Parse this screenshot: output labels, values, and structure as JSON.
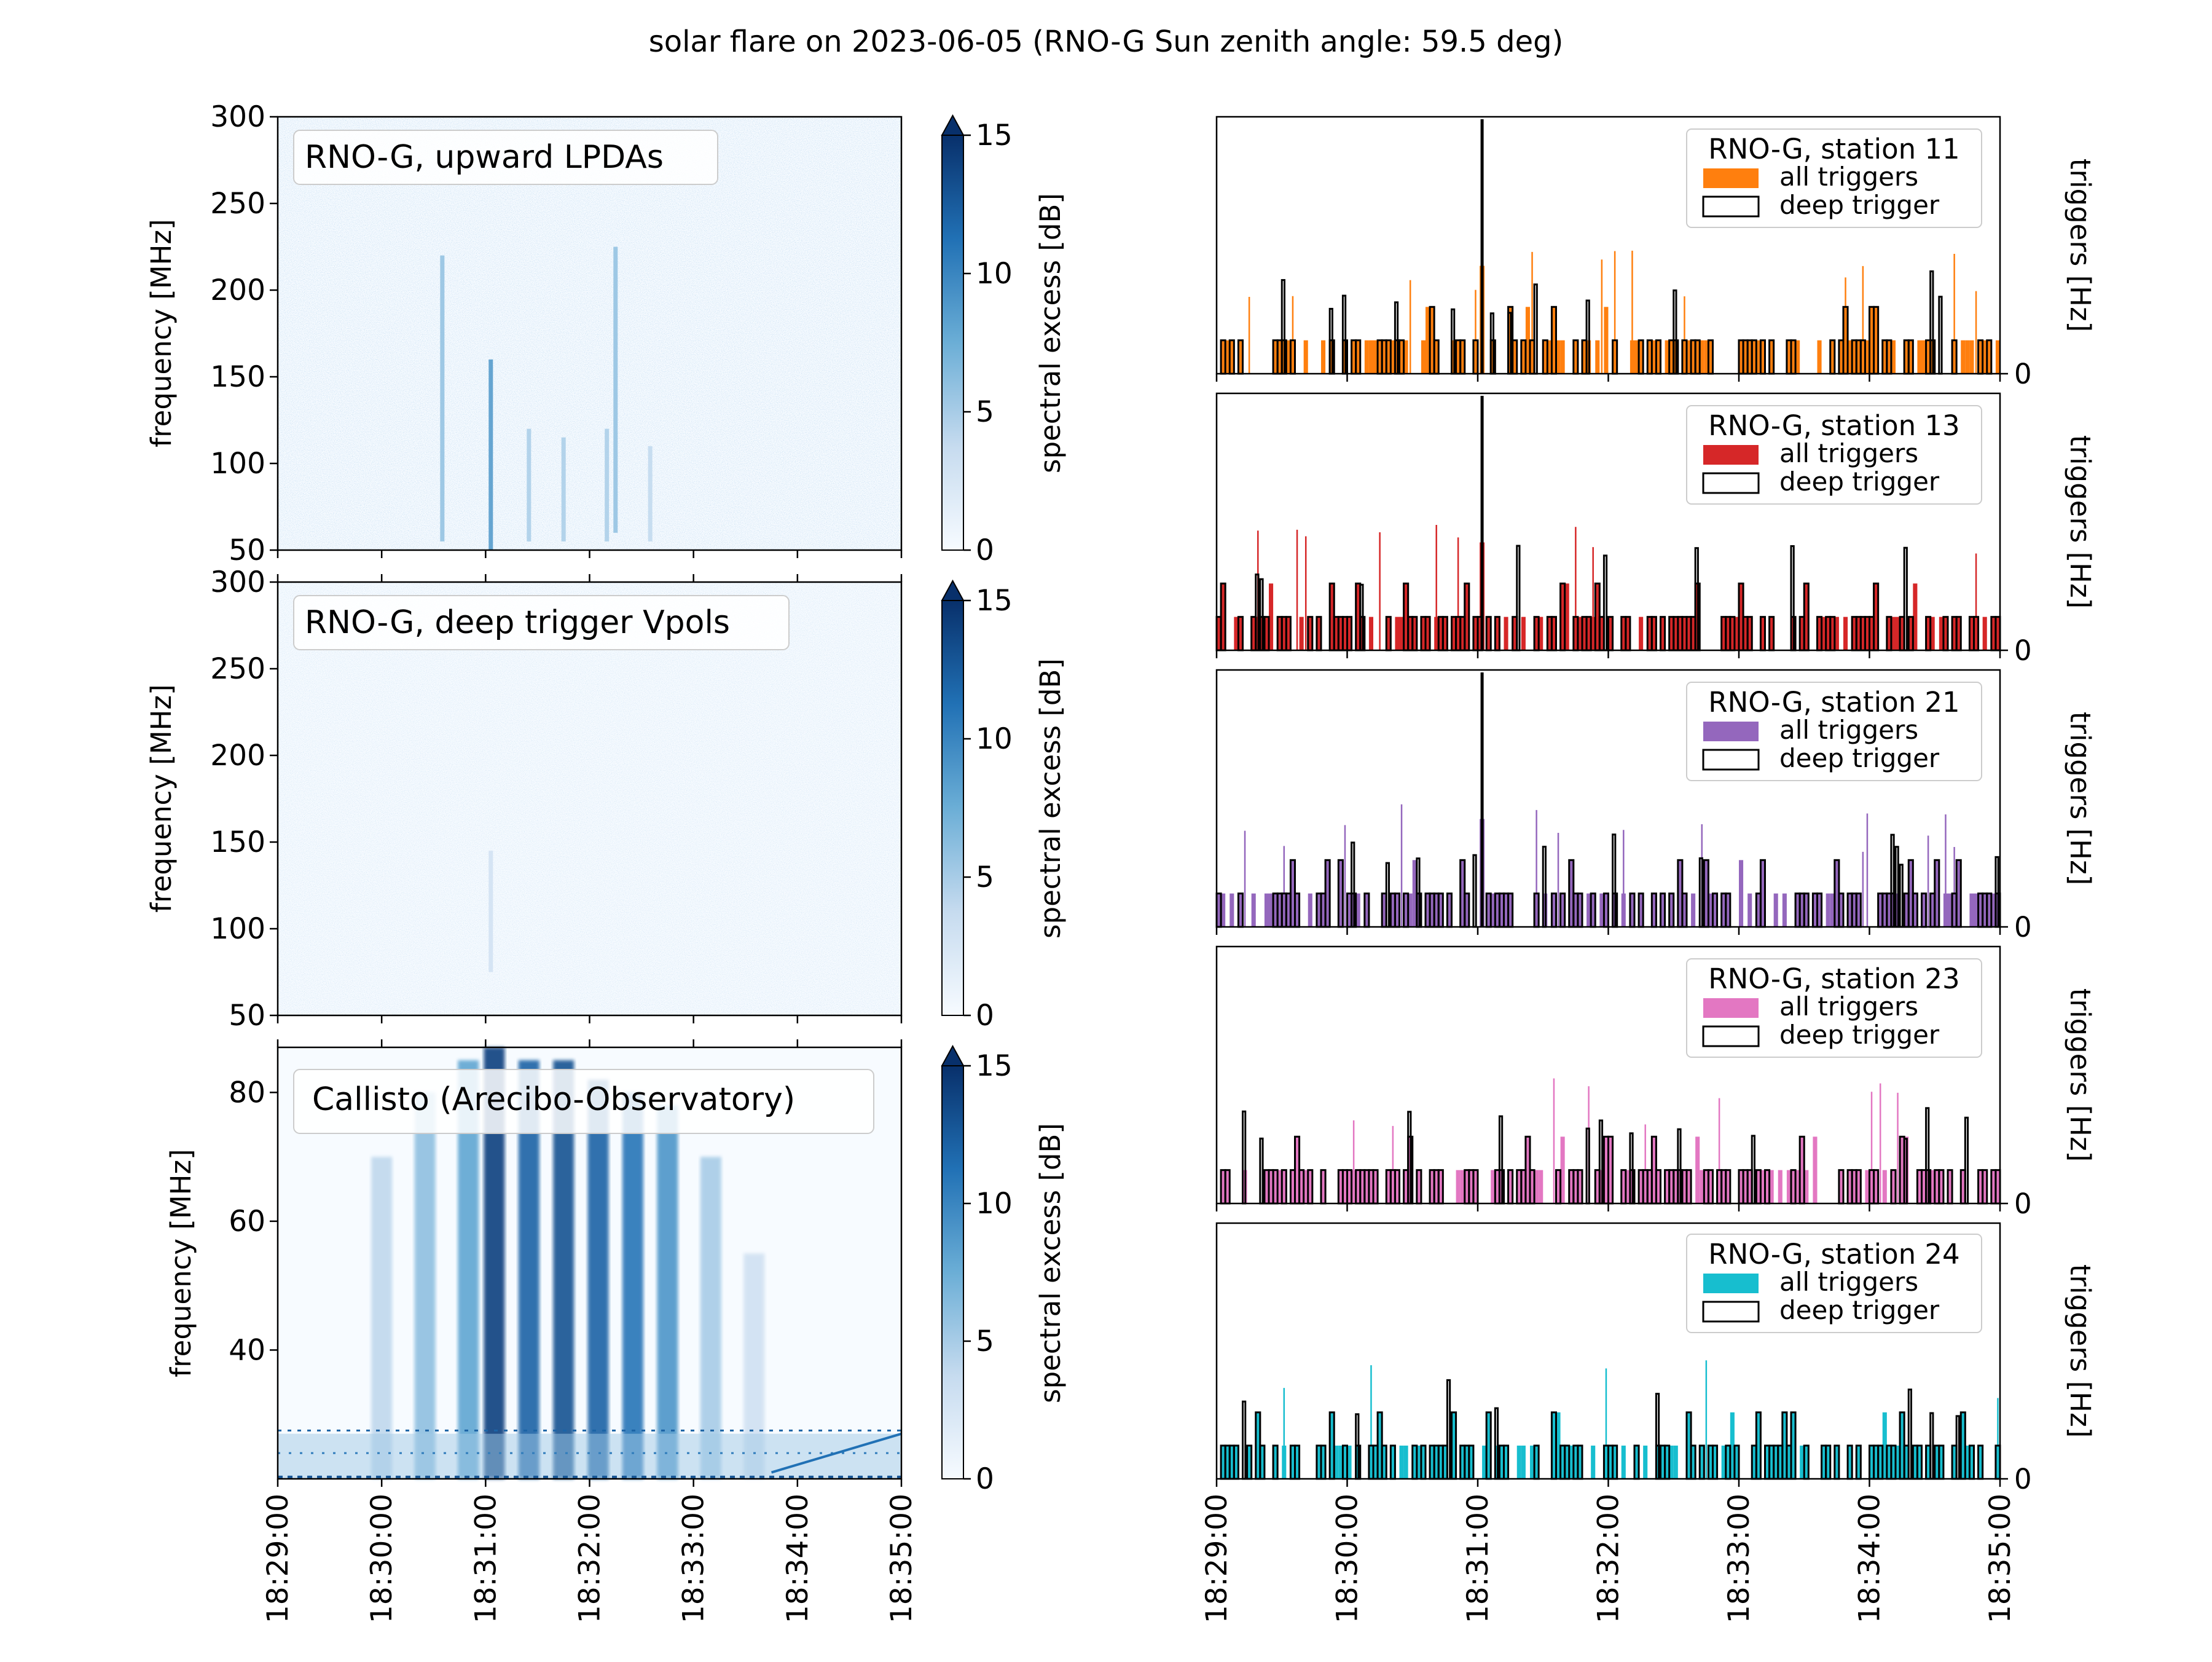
{
  "title": "solar flare on 2023-06-05 (RNO-G Sun zenith angle: 59.5 deg)",
  "colors": {
    "cmap_low": "#f7fbff",
    "cmap_high": "#08306b",
    "axis": "#000000",
    "station_11": "#ff7f0e",
    "station_13": "#d62728",
    "station_21": "#9467bd",
    "station_23": "#e377c2",
    "station_24": "#17becf",
    "deep": "#000000"
  },
  "time_ticks": [
    "18:29:00",
    "18:30:00",
    "18:31:00",
    "18:32:00",
    "18:33:00",
    "18:34:00",
    "18:35:00"
  ],
  "chart_data": [
    {
      "type": "heatmap",
      "label": "RNO-G, upward LPDAs",
      "ylabel": "frequency [MHz]",
      "yticks": [
        "50",
        "100",
        "150",
        "200",
        "250",
        "300"
      ],
      "ylim": [
        50,
        300
      ],
      "xlim": [
        "18:29:00",
        "18:35:00"
      ],
      "colorbar_label": "spectral excess [dB]",
      "colorbar_ticks": [
        "0",
        "5",
        "10",
        "15"
      ],
      "clim": [
        0,
        15
      ],
      "colorbar_extend": "max",
      "bursts": [
        {
          "t": "18:30:35",
          "fmin": 55,
          "fmax": 220,
          "level": 6
        },
        {
          "t": "18:31:03",
          "fmin": 50,
          "fmax": 160,
          "level": 9
        },
        {
          "t": "18:31:25",
          "fmin": 55,
          "fmax": 120,
          "level": 5
        },
        {
          "t": "18:31:45",
          "fmin": 55,
          "fmax": 115,
          "level": 5
        },
        {
          "t": "18:32:10",
          "fmin": 55,
          "fmax": 120,
          "level": 5
        },
        {
          "t": "18:32:15",
          "fmin": 60,
          "fmax": 225,
          "level": 6
        },
        {
          "t": "18:32:35",
          "fmin": 55,
          "fmax": 110,
          "level": 4
        }
      ]
    },
    {
      "type": "heatmap",
      "label": "RNO-G, deep trigger Vpols",
      "ylabel": "frequency [MHz]",
      "yticks": [
        "50",
        "100",
        "150",
        "200",
        "250",
        "300"
      ],
      "ylim": [
        50,
        300
      ],
      "xlim": [
        "18:29:00",
        "18:35:00"
      ],
      "colorbar_label": "spectral excess [dB]",
      "colorbar_ticks": [
        "0",
        "5",
        "10",
        "15"
      ],
      "clim": [
        0,
        15
      ],
      "colorbar_extend": "max",
      "bursts": [
        {
          "t": "18:31:03",
          "fmin": 75,
          "fmax": 145,
          "level": 3
        }
      ]
    },
    {
      "type": "heatmap",
      "label": "Callisto (Arecibo-Observatory)",
      "ylabel": "frequency [MHz]",
      "yticks": [
        "40",
        "60",
        "80"
      ],
      "ylim": [
        20,
        87
      ],
      "xlim": [
        "18:29:00",
        "18:35:00"
      ],
      "colorbar_label": "spectral excess [dB]",
      "colorbar_ticks": [
        "0",
        "5",
        "10",
        "15"
      ],
      "clim": [
        0,
        15
      ],
      "colorbar_extend": "max",
      "bursts": [
        {
          "t": "18:30:00",
          "fmin": 20,
          "fmax": 70,
          "level": 4
        },
        {
          "t": "18:30:25",
          "fmin": 20,
          "fmax": 80,
          "level": 6
        },
        {
          "t": "18:30:50",
          "fmin": 20,
          "fmax": 85,
          "level": 8
        },
        {
          "t": "18:31:05",
          "fmin": 20,
          "fmax": 87,
          "level": 14
        },
        {
          "t": "18:31:25",
          "fmin": 20,
          "fmax": 85,
          "level": 12
        },
        {
          "t": "18:31:45",
          "fmin": 20,
          "fmax": 85,
          "level": 13
        },
        {
          "t": "18:32:05",
          "fmin": 20,
          "fmax": 82,
          "level": 12
        },
        {
          "t": "18:32:25",
          "fmin": 20,
          "fmax": 80,
          "level": 11
        },
        {
          "t": "18:32:45",
          "fmin": 20,
          "fmax": 78,
          "level": 9
        },
        {
          "t": "18:33:10",
          "fmin": 20,
          "fmax": 70,
          "level": 5
        },
        {
          "t": "18:33:35",
          "fmin": 20,
          "fmax": 55,
          "level": 3
        }
      ]
    },
    {
      "type": "bar",
      "legend_title": "RNO-G, station 11",
      "legend": [
        "all triggers",
        "deep trigger"
      ],
      "color": "#ff7f0e",
      "ylabel": "triggers [Hz]",
      "yticks": [
        "0"
      ],
      "xlim": [
        "18:29:00",
        "18:35:00"
      ],
      "legend_placement": "upper right"
    },
    {
      "type": "bar",
      "legend_title": "RNO-G, station 13",
      "legend": [
        "all triggers",
        "deep trigger"
      ],
      "color": "#d62728",
      "ylabel": "triggers [Hz]",
      "yticks": [
        "0"
      ],
      "xlim": [
        "18:29:00",
        "18:35:00"
      ],
      "legend_placement": "upper right"
    },
    {
      "type": "bar",
      "legend_title": "RNO-G, station 21",
      "legend": [
        "all triggers",
        "deep trigger"
      ],
      "color": "#9467bd",
      "ylabel": "triggers [Hz]",
      "yticks": [
        "0"
      ],
      "xlim": [
        "18:29:00",
        "18:35:00"
      ],
      "legend_placement": "upper right"
    },
    {
      "type": "bar",
      "legend_title": "RNO-G, station 23",
      "legend": [
        "all triggers",
        "deep trigger"
      ],
      "color": "#e377c2",
      "ylabel": "triggers [Hz]",
      "yticks": [
        "0"
      ],
      "xlim": [
        "18:29:00",
        "18:35:00"
      ],
      "legend_placement": "upper right"
    },
    {
      "type": "bar",
      "legend_title": "RNO-G, station 24",
      "legend": [
        "all triggers",
        "deep trigger"
      ],
      "color": "#17becf",
      "ylabel": "triggers [Hz]",
      "yticks": [
        "0"
      ],
      "xlim": [
        "18:29:00",
        "18:35:00"
      ],
      "legend_placement": "upper right"
    }
  ]
}
